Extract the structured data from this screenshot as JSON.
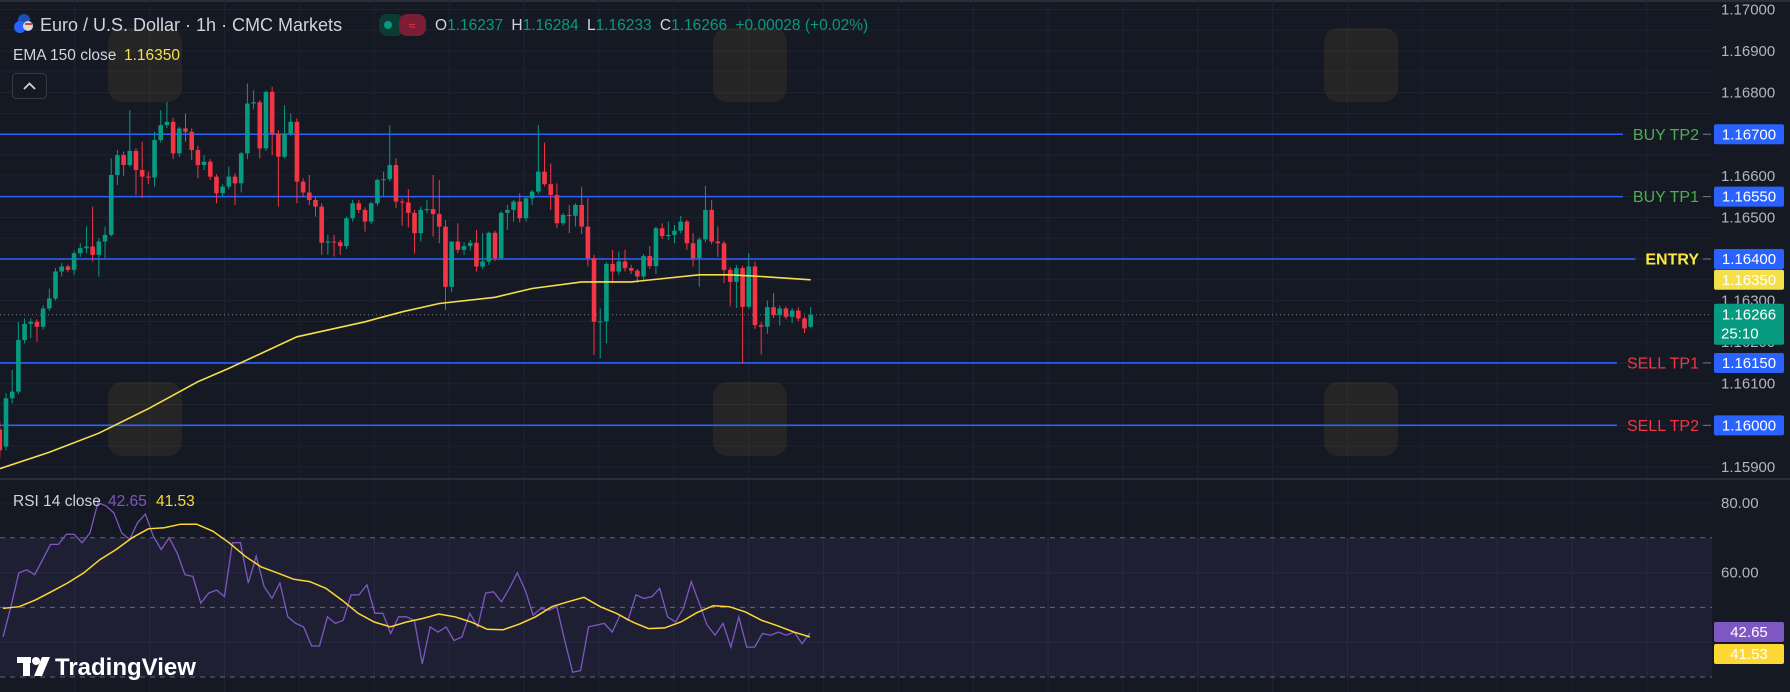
{
  "header": {
    "title": "Euro / U.S. Dollar · 1h · CMC Markets",
    "ohlc": {
      "o_label": "O",
      "o": "1.16237",
      "h_label": "H",
      "h": "1.16284",
      "l_label": "L",
      "l": "1.16233",
      "c_label": "C",
      "c": "1.16266",
      "change": "+0.00028 (+0.02%)"
    },
    "ema_label": "EMA 150 close",
    "ema_value": "1.16350",
    "collapse_icon": "chevron-up-icon"
  },
  "rsi_legend": {
    "label": "RSI 14 close",
    "rsi_value": "42.65",
    "ma_value": "41.53"
  },
  "brand": "TradingView",
  "colors": {
    "background": "#151924",
    "up": "#089981",
    "down": "#f23645",
    "level_line": "#2962ff",
    "ema": "#f3e04a",
    "rsi": "#7e57c2",
    "rsi_ma": "#fdd835",
    "buy": "#4caf50",
    "sell": "#f23645",
    "entry": "#ffeb3b"
  },
  "price_axis": {
    "ticks": [
      "1.17000",
      "1.16900",
      "1.16800",
      "1.16700",
      "1.16600",
      "1.16500",
      "1.16400",
      "1.16300",
      "1.16200",
      "1.16100",
      "1.16000",
      "1.15900"
    ]
  },
  "rsi_axis": {
    "ticks": [
      "80.00",
      "60.00"
    ]
  },
  "levels": [
    {
      "label": "BUY TP2",
      "price": "1.16700",
      "kind": "buy"
    },
    {
      "label": "BUY TP1",
      "price": "1.16550",
      "kind": "buy"
    },
    {
      "label": "ENTRY",
      "price": "1.16400",
      "kind": "entry"
    },
    {
      "label": "SELL TP1",
      "price": "1.16150",
      "kind": "sell"
    },
    {
      "label": "SELL TP2",
      "price": "1.16000",
      "kind": "sell"
    }
  ],
  "axis_badges": {
    "ema": "1.16350",
    "last_price": "1.16266",
    "countdown": "25:10",
    "rsi": "42.65",
    "rsi_ma": "41.53"
  },
  "chart_data": {
    "type": "candlestick",
    "timeframe": "1h",
    "candles_ohlc": [
      [
        1.1599,
        1.1601,
        1.1592,
        1.1594
      ],
      [
        1.15949,
        1.16077,
        1.1594,
        1.16065
      ],
      [
        1.16065,
        1.16133,
        1.16053,
        1.16081
      ],
      [
        1.16081,
        1.16249,
        1.16075,
        1.16205
      ],
      [
        1.16205,
        1.16257,
        1.16197,
        1.16244
      ],
      [
        1.16244,
        1.16257,
        1.1621,
        1.16249
      ],
      [
        1.16249,
        1.16255,
        1.16201,
        1.16237
      ],
      [
        1.16237,
        1.16289,
        1.1623,
        1.16281
      ],
      [
        1.16281,
        1.16329,
        1.16275,
        1.16305
      ],
      [
        1.16305,
        1.16378,
        1.163,
        1.1637
      ],
      [
        1.1637,
        1.1639,
        1.16358,
        1.16382
      ],
      [
        1.16382,
        1.16386,
        1.16368,
        1.16374
      ],
      [
        1.16374,
        1.1642,
        1.16362,
        1.16414
      ],
      [
        1.16414,
        1.16438,
        1.16405,
        1.16426
      ],
      [
        1.16426,
        1.16478,
        1.16414,
        1.1643
      ],
      [
        1.1643,
        1.16526,
        1.16394,
        1.1641
      ],
      [
        1.1641,
        1.1645,
        1.16358,
        1.16442
      ],
      [
        1.16442,
        1.16478,
        1.16402,
        1.16458
      ],
      [
        1.16458,
        1.16642,
        1.16454,
        1.16602
      ],
      [
        1.16602,
        1.16662,
        1.16578,
        1.1665
      ],
      [
        1.1665,
        1.16658,
        1.166,
        1.16626
      ],
      [
        1.16626,
        1.16758,
        1.16622,
        1.1666
      ],
      [
        1.1666,
        1.16666,
        1.16554,
        1.16614
      ],
      [
        1.16614,
        1.16682,
        1.16546,
        1.16598
      ],
      [
        1.16598,
        1.1661,
        1.1658,
        1.16596
      ],
      [
        1.16596,
        1.16706,
        1.16574,
        1.16686
      ],
      [
        1.16686,
        1.16758,
        1.1668,
        1.16722
      ],
      [
        1.16722,
        1.16778,
        1.16715,
        1.1673
      ],
      [
        1.1673,
        1.1674,
        1.1664,
        1.16654
      ],
      [
        1.16654,
        1.16718,
        1.16646,
        1.16714
      ],
      [
        1.16714,
        1.1675,
        1.16682,
        1.16706
      ],
      [
        1.16706,
        1.16714,
        1.16638,
        1.16662
      ],
      [
        1.16662,
        1.16672,
        1.16594,
        1.16626
      ],
      [
        1.16626,
        1.1665,
        1.16614,
        1.16634
      ],
      [
        1.16634,
        1.1664,
        1.1659,
        1.16598
      ],
      [
        1.16598,
        1.16604,
        1.16534,
        1.16558
      ],
      [
        1.16558,
        1.1658,
        1.1655,
        1.16574
      ],
      [
        1.16574,
        1.16622,
        1.16568,
        1.16598
      ],
      [
        1.16598,
        1.16606,
        1.1653,
        1.16582
      ],
      [
        1.16582,
        1.16658,
        1.1656,
        1.16654
      ],
      [
        1.16654,
        1.16822,
        1.1664,
        1.16774
      ],
      [
        1.16774,
        1.16806,
        1.1676,
        1.16777
      ],
      [
        1.16777,
        1.16782,
        1.16642,
        1.16666
      ],
      [
        1.16666,
        1.16805,
        1.1666,
        1.16802
      ],
      [
        1.16802,
        1.16814,
        1.1665,
        1.16702
      ],
      [
        1.16702,
        1.1671,
        1.16526,
        1.16646
      ],
      [
        1.16646,
        1.1677,
        1.16642,
        1.16702
      ],
      [
        1.16702,
        1.1675,
        1.16696,
        1.1673
      ],
      [
        1.1673,
        1.16738,
        1.16534,
        1.16586
      ],
      [
        1.16586,
        1.16594,
        1.16548,
        1.1656
      ],
      [
        1.1656,
        1.16602,
        1.1653,
        1.16542
      ],
      [
        1.16542,
        1.1655,
        1.16502,
        1.16526
      ],
      [
        1.16526,
        1.16534,
        1.1641,
        1.16439
      ],
      [
        1.16439,
        1.16458,
        1.1641,
        1.16442
      ],
      [
        1.16442,
        1.16458,
        1.16406,
        1.1644
      ],
      [
        1.1644,
        1.16446,
        1.1641,
        1.16431
      ],
      [
        1.16431,
        1.16502,
        1.16424,
        1.16498
      ],
      [
        1.16498,
        1.16542,
        1.1649,
        1.16534
      ],
      [
        1.16534,
        1.16542,
        1.1651,
        1.16518
      ],
      [
        1.16518,
        1.16524,
        1.16466,
        1.1649
      ],
      [
        1.1649,
        1.16538,
        1.16484,
        1.16534
      ],
      [
        1.16534,
        1.16594,
        1.16528,
        1.1659
      ],
      [
        1.1659,
        1.1661,
        1.16552,
        1.16592
      ],
      [
        1.16592,
        1.16722,
        1.16586,
        1.16626
      ],
      [
        1.16626,
        1.16642,
        1.16522,
        1.16538
      ],
      [
        1.16538,
        1.16546,
        1.1648,
        1.16536
      ],
      [
        1.16536,
        1.16568,
        1.16476,
        1.16511
      ],
      [
        1.16511,
        1.16518,
        1.16413,
        1.16462
      ],
      [
        1.16462,
        1.16526,
        1.16442,
        1.16518
      ],
      [
        1.16518,
        1.16542,
        1.1651,
        1.1652
      ],
      [
        1.1652,
        1.16602,
        1.16454,
        1.16508
      ],
      [
        1.16508,
        1.1659,
        1.16438,
        1.16478
      ],
      [
        1.16478,
        1.16494,
        1.16277,
        1.16333
      ],
      [
        1.16333,
        1.16442,
        1.1632,
        1.16442
      ],
      [
        1.16442,
        1.16486,
        1.16414,
        1.16422
      ],
      [
        1.16422,
        1.1644,
        1.1641,
        1.16431
      ],
      [
        1.16431,
        1.16446,
        1.1642,
        1.16439
      ],
      [
        1.16439,
        1.1647,
        1.1637,
        1.16382
      ],
      [
        1.16382,
        1.16462,
        1.16376,
        1.16394
      ],
      [
        1.16394,
        1.16466,
        1.16386,
        1.16463
      ],
      [
        1.16463,
        1.16468,
        1.16395,
        1.16402
      ],
      [
        1.16402,
        1.16515,
        1.16398,
        1.16511
      ],
      [
        1.16511,
        1.1653,
        1.1647,
        1.16518
      ],
      [
        1.16518,
        1.16542,
        1.1649,
        1.16538
      ],
      [
        1.16538,
        1.16558,
        1.16488,
        1.16498
      ],
      [
        1.16498,
        1.1655,
        1.1649,
        1.16546
      ],
      [
        1.16546,
        1.16566,
        1.1653,
        1.16562
      ],
      [
        1.16562,
        1.16722,
        1.16556,
        1.1661
      ],
      [
        1.1661,
        1.1668,
        1.16575,
        1.1658
      ],
      [
        1.1658,
        1.1663,
        1.16518,
        1.16554
      ],
      [
        1.16554,
        1.16582,
        1.16474,
        1.16486
      ],
      [
        1.16486,
        1.1651,
        1.1648,
        1.16506
      ],
      [
        1.16506,
        1.1653,
        1.16462,
        1.16504
      ],
      [
        1.16504,
        1.16534,
        1.16478,
        1.1653
      ],
      [
        1.1653,
        1.16574,
        1.1646,
        1.16478
      ],
      [
        1.16478,
        1.16546,
        1.16382,
        1.16402
      ],
      [
        1.16402,
        1.1641,
        1.16169,
        1.16249
      ],
      [
        1.16249,
        1.16281,
        1.16161,
        1.1625
      ],
      [
        1.1625,
        1.16392,
        1.16197,
        1.16388
      ],
      [
        1.16388,
        1.16422,
        1.16342,
        1.1637
      ],
      [
        1.1637,
        1.16418,
        1.16362,
        1.16394
      ],
      [
        1.16394,
        1.16422,
        1.1637,
        1.16378
      ],
      [
        1.16378,
        1.16386,
        1.16364,
        1.16372
      ],
      [
        1.16372,
        1.16376,
        1.16342,
        1.16358
      ],
      [
        1.16358,
        1.16412,
        1.1635,
        1.16407
      ],
      [
        1.16407,
        1.16431,
        1.16376,
        1.16383
      ],
      [
        1.16383,
        1.16478,
        1.16364,
        1.16474
      ],
      [
        1.16474,
        1.16486,
        1.16448,
        1.16455
      ],
      [
        1.16455,
        1.1649,
        1.16446,
        1.16458
      ],
      [
        1.16458,
        1.16482,
        1.16438,
        1.16468
      ],
      [
        1.16468,
        1.16504,
        1.16462,
        1.1649
      ],
      [
        1.1649,
        1.16494,
        1.16422,
        1.16438
      ],
      [
        1.16438,
        1.16462,
        1.16382,
        1.16402
      ],
      [
        1.16402,
        1.16452,
        1.16333,
        1.16447
      ],
      [
        1.16447,
        1.16576,
        1.1644,
        1.16518
      ],
      [
        1.16518,
        1.16542,
        1.16435,
        1.16442
      ],
      [
        1.16442,
        1.16478,
        1.16405,
        1.16438
      ],
      [
        1.16438,
        1.16444,
        1.16342,
        1.16374
      ],
      [
        1.16374,
        1.1638,
        1.16286,
        1.16345
      ],
      [
        1.16345,
        1.16386,
        1.16282,
        1.16378
      ],
      [
        1.16378,
        1.16384,
        1.16149,
        1.16285
      ],
      [
        1.16285,
        1.16414,
        1.1628,
        1.16382
      ],
      [
        1.16382,
        1.16394,
        1.16232,
        1.16241
      ],
      [
        1.16241,
        1.16248,
        1.1617,
        1.16237
      ],
      [
        1.16237,
        1.163,
        1.1622,
        1.16284
      ],
      [
        1.16284,
        1.16318,
        1.16258,
        1.16265
      ],
      [
        1.16265,
        1.16288,
        1.1624,
        1.16281
      ],
      [
        1.16281,
        1.16286,
        1.16255,
        1.16261
      ],
      [
        1.16261,
        1.16282,
        1.16246,
        1.16276
      ],
      [
        1.16276,
        1.16284,
        1.1625,
        1.16257
      ],
      [
        1.16257,
        1.16262,
        1.16222,
        1.16233
      ],
      [
        1.16237,
        1.16284,
        1.16233,
        1.16266
      ]
    ],
    "ema150": [
      [
        0,
        1.15896
      ],
      [
        8,
        1.15935
      ],
      [
        16,
        1.15981
      ],
      [
        24,
        1.1604
      ],
      [
        32,
        1.16105
      ],
      [
        37,
        1.16137
      ],
      [
        48,
        1.16213
      ],
      [
        59,
        1.16249
      ],
      [
        65,
        1.16273
      ],
      [
        71,
        1.16293
      ],
      [
        80,
        1.16308
      ],
      [
        86,
        1.16329
      ],
      [
        94,
        1.16345
      ],
      [
        102,
        1.16345
      ],
      [
        113,
        1.16362
      ],
      [
        118,
        1.16362
      ],
      [
        123,
        1.16358
      ],
      [
        131,
        1.1635
      ]
    ],
    "rsi14": [
      41.5,
      50.2,
      59.9,
      60.8,
      59.4,
      63.7,
      68.1,
      68.1,
      71.0,
      71.0,
      68.6,
      71.4,
      80.1,
      79.2,
      77.2,
      71.4,
      69.5,
      74.3,
      76.8,
      70.5,
      66.6,
      70.0,
      65.7,
      59.4,
      58.9,
      51.2,
      54.1,
      55.0,
      53.1,
      68.6,
      68.6,
      57.0,
      64.7,
      56.0,
      52.6,
      57.0,
      47.3,
      45.4,
      44.4,
      38.9,
      38.9,
      47.3,
      45.4,
      46.3,
      53.6,
      53.6,
      56.5,
      48.3,
      48.3,
      42.5,
      47.3,
      47.3,
      46.3,
      33.8,
      44.4,
      42.9,
      44.4,
      40.5,
      41.5,
      48.3,
      44.4,
      54.1,
      54.5,
      51.6,
      55.5,
      59.9,
      55.0,
      47.8,
      49.7,
      49.2,
      50.2,
      40.5,
      31.4,
      31.8,
      44.4,
      44.9,
      45.4,
      42.9,
      47.8,
      46.3,
      53.6,
      52.6,
      53.1,
      55.5,
      47.3,
      45.8,
      49.7,
      57.4,
      51.2,
      44.9,
      42.0,
      45.4,
      38.6,
      47.3,
      38.6,
      38.6,
      42.5,
      42.0,
      42.9,
      42.0,
      42.9,
      39.6,
      42.65
    ],
    "rsi_ma": [
      49.7,
      50.2,
      52.1,
      54.5,
      57.0,
      59.9,
      63.7,
      66.6,
      70.0,
      72.6,
      72.9,
      73.9,
      73.9,
      71.9,
      68.6,
      64.7,
      61.6,
      59.9,
      58.1,
      57.4,
      55.5,
      52.1,
      48.3,
      45.8,
      44.4,
      45.8,
      46.8,
      48.1,
      47.3,
      45.8,
      43.7,
      43.6,
      45.2,
      47.3,
      50.2,
      51.6,
      52.9,
      50.2,
      48.3,
      45.8,
      43.9,
      44.1,
      45.8,
      48.5,
      50.5,
      50.2,
      48.7,
      46.3,
      44.7,
      42.9,
      41.53
    ],
    "rsi_bands": [
      70,
      50,
      30
    ],
    "price_range": [
      1.1587,
      1.1702
    ],
    "rsi_range": [
      27,
      84
    ],
    "grid": true
  }
}
